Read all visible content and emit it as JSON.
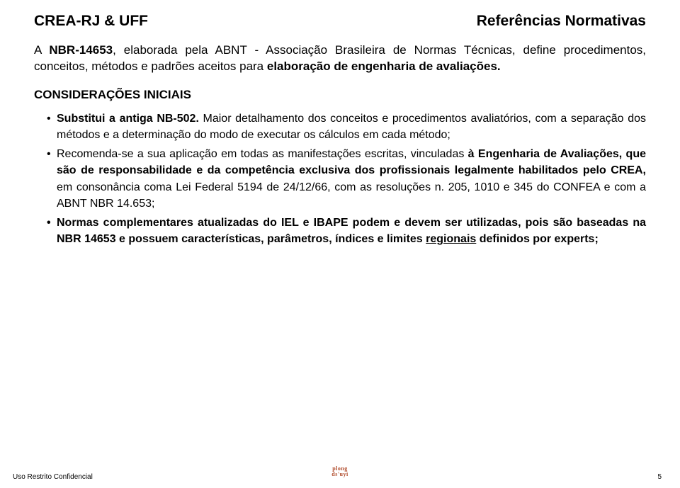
{
  "header": {
    "left": "CREA-RJ & UFF",
    "right": "Referências Normativas"
  },
  "intro": {
    "prefix": "A ",
    "norm": "NBR-14653",
    "mid": ", elaborada pela ABNT - Associação Brasileira de Normas Técnicas, define procedimentos, conceitos, métodos e padrões aceitos para ",
    "tail": "elaboração de engenharia de avaliações."
  },
  "subhead": "CONSIDERAÇÕES INICIAIS",
  "bullets": {
    "b1": {
      "bold": "Substitui a antiga NB-502.",
      "rest": " Maior detalhamento dos conceitos e procedimentos avaliatórios, com a separação dos métodos e a determinação do modo de executar os cálculos em cada método;"
    },
    "b2": {
      "pre": "Recomenda-se a sua aplicação em todas as manifestações escritas, vinculadas ",
      "a": "à Engenharia de Avaliações, que são de responsabilidade e da competência exclusiva dos profissionais legalmente habilitados pelo CREA,",
      "post": " em consonância coma Lei Federal 5194 de 24/12/66, com as resoluções n. 205, 1010 e 345 do CONFEA e com a ABNT NBR 14.653;"
    },
    "b3": {
      "lead": "Normas complementares atualizadas do IEL e IBAPE podem e devem ser utilizadas, pois são baseadas na NBR 14653 e possuem características, parâmetros, índices e limites ",
      "u": "regionais",
      "tail": " definidos por experts;"
    }
  },
  "footer": {
    "left": "Uso Restrito Confidencial",
    "page": "5",
    "logo_line1": "plong",
    "logo_line2": "ds'uyi"
  },
  "colors": {
    "text": "#000000",
    "logo": "#b04a2a",
    "bg": "#ffffff"
  }
}
